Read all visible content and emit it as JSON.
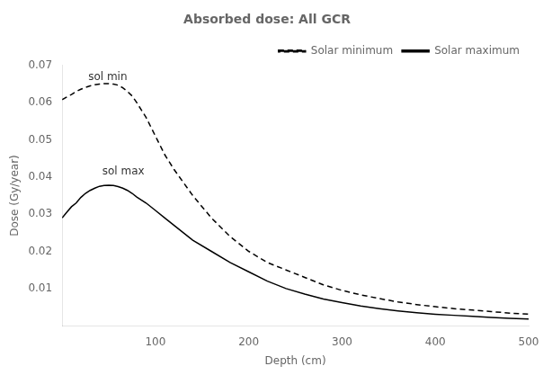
{
  "chart_data": {
    "type": "line",
    "title": "Absorbed dose: All GCR",
    "xlabel": "Depth (cm)",
    "ylabel": "Dose (Gy/year)",
    "xlim": [
      0,
      500
    ],
    "ylim": [
      0,
      0.07
    ],
    "xticks": [
      100,
      200,
      300,
      400,
      500
    ],
    "yticks": [
      0.01,
      0.02,
      0.03,
      0.04,
      0.05,
      0.06,
      0.07
    ],
    "grid": false,
    "legend": "upper right",
    "annotations": [
      {
        "text": "sol min",
        "x": 28,
        "y": 0.0655
      },
      {
        "text": "sol max",
        "x": 43,
        "y": 0.04
      }
    ],
    "series": [
      {
        "name": "Solar minimum",
        "color": "#000000",
        "line_style": "dashed",
        "marker": "none",
        "x": [
          0,
          5,
          10,
          15,
          20,
          25,
          30,
          35,
          40,
          45,
          50,
          55,
          60,
          65,
          70,
          75,
          80,
          90,
          100,
          110,
          120,
          140,
          160,
          180,
          200,
          220,
          240,
          260,
          280,
          300,
          320,
          340,
          360,
          380,
          400,
          420,
          440,
          460,
          480,
          500
        ],
        "values": [
          0.0608,
          0.0615,
          0.0622,
          0.063,
          0.0636,
          0.0641,
          0.0645,
          0.0648,
          0.065,
          0.0651,
          0.0651,
          0.065,
          0.0647,
          0.064,
          0.063,
          0.0618,
          0.06,
          0.056,
          0.051,
          0.046,
          0.042,
          0.035,
          0.029,
          0.024,
          0.02,
          0.017,
          0.015,
          0.013,
          0.011,
          0.0095,
          0.0083,
          0.0073,
          0.0064,
          0.0057,
          0.0051,
          0.0046,
          0.0042,
          0.0038,
          0.0034,
          0.0031
        ]
      },
      {
        "name": "Solar maximum",
        "color": "#000000",
        "line_style": "solid",
        "marker": "none",
        "x": [
          0,
          5,
          10,
          15,
          20,
          25,
          30,
          35,
          40,
          45,
          50,
          55,
          60,
          65,
          70,
          75,
          80,
          90,
          100,
          110,
          120,
          140,
          160,
          180,
          200,
          220,
          240,
          260,
          280,
          300,
          320,
          340,
          360,
          380,
          400,
          420,
          440,
          460,
          480,
          500
        ],
        "values": [
          0.029,
          0.0305,
          0.032,
          0.033,
          0.0345,
          0.0356,
          0.0364,
          0.037,
          0.0375,
          0.0377,
          0.0378,
          0.0377,
          0.0374,
          0.037,
          0.0364,
          0.0356,
          0.0346,
          0.033,
          0.031,
          0.029,
          0.027,
          0.023,
          0.02,
          0.017,
          0.0145,
          0.012,
          0.01,
          0.0085,
          0.0072,
          0.0062,
          0.0053,
          0.0046,
          0.004,
          0.0035,
          0.0031,
          0.0028,
          0.0025,
          0.0022,
          0.002,
          0.0018
        ]
      }
    ]
  }
}
